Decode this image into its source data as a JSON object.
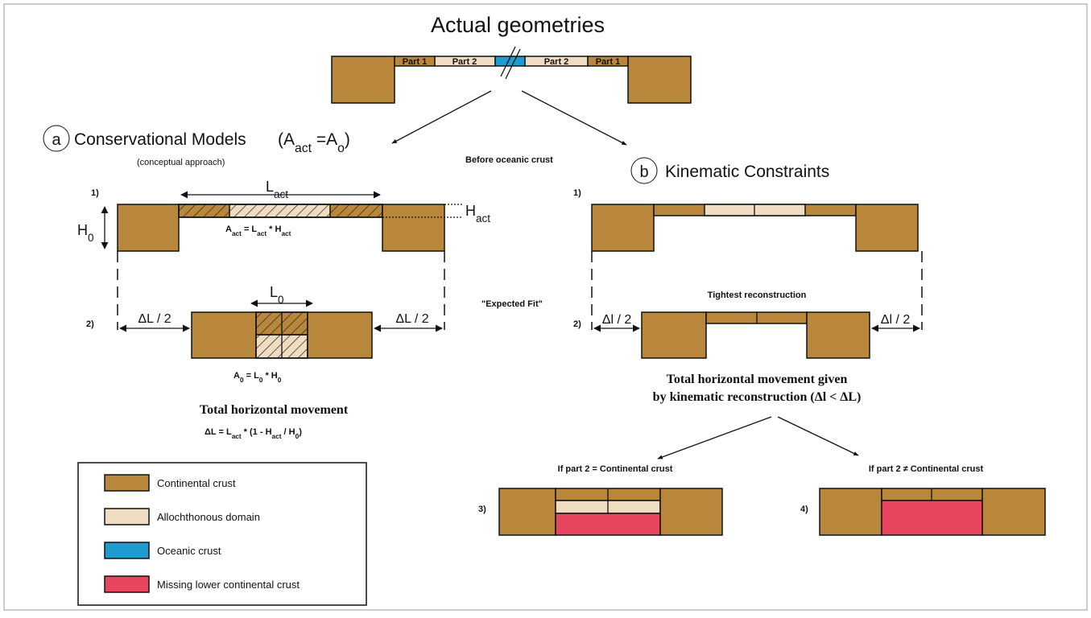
{
  "title": "Actual geometries",
  "top_parts": [
    "Part 1",
    "Part 2",
    "Part 2",
    "Part 1"
  ],
  "panel_a": {
    "letter": "a",
    "title": "Conservational Models",
    "formula": [
      "(A",
      "act",
      " =A",
      "o",
      ")"
    ],
    "note": "(conceptual approach)",
    "step1": {
      "label": "1)",
      "length": [
        "L",
        "act"
      ],
      "height_left": [
        "H",
        "0"
      ],
      "height_right": [
        "H",
        "act"
      ],
      "area": [
        "A",
        "act",
        " = L",
        "act",
        " * H",
        "act"
      ]
    },
    "expected_fit": "\"Expected Fit\"",
    "step2": {
      "label": "2)",
      "gap_left": "ΔL / 2",
      "gap_right": "ΔL / 2",
      "length": [
        "L",
        "0"
      ],
      "area": [
        "A",
        "0",
        " = L",
        "0",
        " * H",
        "0"
      ]
    },
    "summary": "Total horizontal movement",
    "summary_formula": [
      "ΔL = L",
      "act",
      " * (1 - H",
      "act",
      " / H",
      "0",
      ")"
    ]
  },
  "before_oceanic": "Before oceanic crust",
  "panel_b": {
    "letter": "b",
    "title": "Kinematic Constraints",
    "step1": {
      "label": "1)"
    },
    "tightest": "Tightest reconstruction",
    "step2": {
      "label": "2)",
      "gap_left": "Δl / 2",
      "gap_right": "Δl / 2"
    },
    "summary": [
      "Total horizontal movement given",
      "by kinematic reconstruction (Δl < ΔL)"
    ],
    "case3": {
      "label": "3)",
      "title": "If part 2 = Continental crust"
    },
    "case4": {
      "label": "4)",
      "title": "If part 2 ≠ Continental crust"
    }
  },
  "legend": [
    {
      "label": "Continental crust",
      "color": "#b8873c"
    },
    {
      "label": "Allochthonous domain",
      "color": "#f0dcc0"
    },
    {
      "label": "Oceanic crust",
      "color": "#1f9ccf"
    },
    {
      "label": "Missing lower continental crust",
      "color": "#e8455e"
    }
  ]
}
